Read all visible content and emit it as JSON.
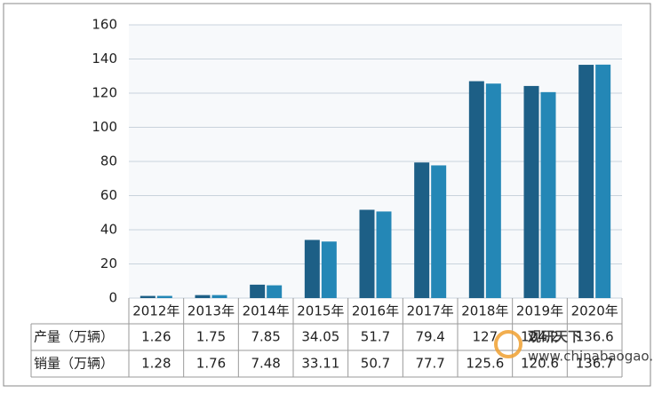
{
  "chart_data": {
    "type": "bar",
    "categories": [
      "2012年",
      "2013年",
      "2014年",
      "2015年",
      "2016年",
      "2017年",
      "2018年",
      "2019年",
      "2020年"
    ],
    "series": [
      {
        "name": "产量（万辆）",
        "color": "#1d5f86",
        "values": [
          1.26,
          1.75,
          7.85,
          34.05,
          51.7,
          79.4,
          127,
          124.2,
          136.6
        ]
      },
      {
        "name": "销量（万辆）",
        "color": "#2487b6",
        "values": [
          1.28,
          1.76,
          7.48,
          33.11,
          50.7,
          77.7,
          125.6,
          120.6,
          136.7
        ]
      }
    ],
    "ylim": [
      0,
      160
    ],
    "yticks": [
      0,
      20,
      40,
      60,
      80,
      100,
      120,
      140,
      160
    ],
    "grid": true,
    "watermark": {
      "brand": "观研天下",
      "site": "www.chinabaogao.com"
    }
  }
}
